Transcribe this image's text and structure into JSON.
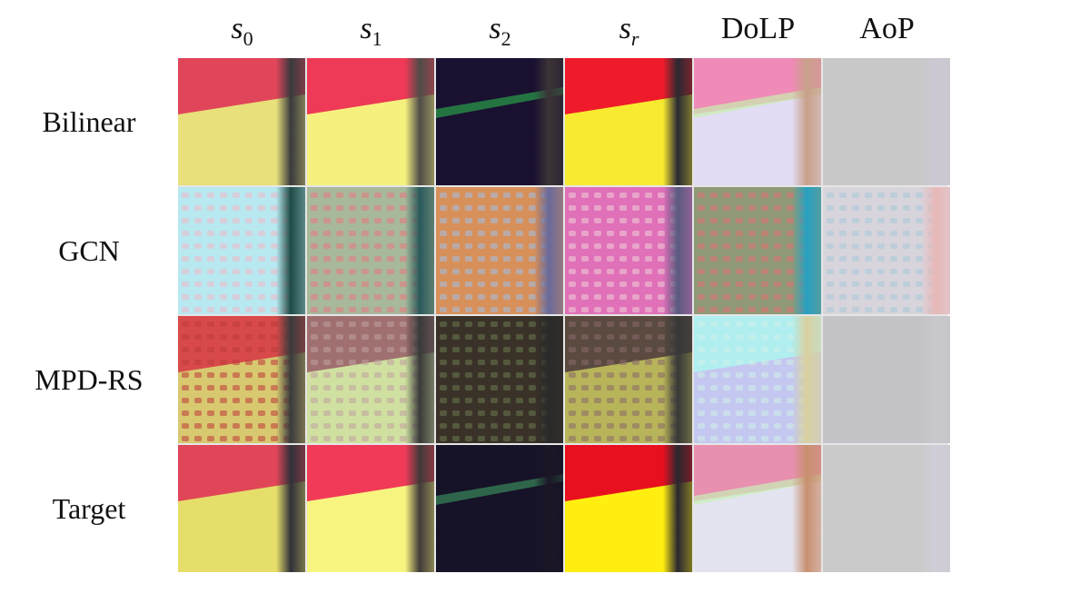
{
  "figure": {
    "columns": [
      {
        "id": "s0",
        "base": "s",
        "sub": "0",
        "math": true
      },
      {
        "id": "s1",
        "base": "s",
        "sub": "1",
        "math": true
      },
      {
        "id": "s2",
        "base": "s",
        "sub": "2",
        "math": true
      },
      {
        "id": "sr",
        "base": "s",
        "sub": "r",
        "math": true
      },
      {
        "id": "dolp",
        "base": "DoLP",
        "sub": "",
        "math": false
      },
      {
        "id": "aop",
        "base": "AoP",
        "sub": "",
        "math": false
      }
    ],
    "rows": [
      {
        "id": "bilinear",
        "label": "Bilinear"
      },
      {
        "id": "gcn",
        "label": "GCN"
      },
      {
        "id": "mpd-rs",
        "label": "MPD-RS"
      },
      {
        "id": "target",
        "label": "Target"
      }
    ],
    "cells": [
      [
        {
          "top": "#e0455a",
          "bottom": "#e8e07a",
          "edge": "#3a3a3e",
          "style": "split"
        },
        {
          "top": "#ee3a56",
          "bottom": "#f6f17e",
          "edge": "#504c48",
          "style": "split"
        },
        {
          "top": "#1a1030",
          "bottom": "#1a1030",
          "edge": "#3a3436",
          "accent": "#2aa04a",
          "style": "dark"
        },
        {
          "top": "#ef1b2a",
          "bottom": "#f8ea30",
          "edge": "#2a2a32",
          "style": "split"
        },
        {
          "top": "#f08ab6",
          "bottom": "#e2dcf4",
          "edge": "#c8a08a",
          "accent": "#c8f0b0",
          "style": "split"
        },
        {
          "top": "#c8c8c8",
          "bottom": "#c6c6cc",
          "edge": "#cdc8d4",
          "style": "flat"
        }
      ],
      [
        {
          "top": "#b8e8f0",
          "bottom": "#b0d8ec",
          "edge": "#1e4a44",
          "pattern": "#f0b8c8",
          "style": "pattern"
        },
        {
          "top": "#a8b89a",
          "bottom": "#b8c8a0",
          "edge": "#2a5a5a",
          "pattern": "#e87880",
          "style": "pattern"
        },
        {
          "top": "#d8905a",
          "bottom": "#d88a6a",
          "edge": "#6a6a9a",
          "pattern": "#a0c0e8",
          "style": "pattern"
        },
        {
          "top": "#e070b8",
          "bottom": "#d070c0",
          "edge": "#5a5a80",
          "pattern": "#f0d0d8",
          "style": "pattern"
        },
        {
          "top": "#909a78",
          "bottom": "#a0a080",
          "edge": "#28a0c0",
          "pattern": "#e07070",
          "style": "pattern"
        },
        {
          "top": "#d8d4dc",
          "bottom": "#d4d0dc",
          "edge": "#e8b8b8",
          "pattern": "#a8c8d8",
          "style": "pattern"
        }
      ],
      [
        {
          "top": "#d84a4a",
          "bottom": "#d8c870",
          "edge": "#3a3a3c",
          "pattern": "#c03a3a",
          "style": "split-pattern"
        },
        {
          "top": "#a07070",
          "bottom": "#d0e0a0",
          "edge": "#3a3a3a",
          "pattern": "#c0a0a0",
          "style": "split-pattern"
        },
        {
          "top": "#3a3228",
          "bottom": "#302a24",
          "edge": "#2a2a2a",
          "pattern": "#6a7a50",
          "style": "dark-pattern"
        },
        {
          "top": "#5a4a40",
          "bottom": "#b8b45a",
          "edge": "#383838",
          "pattern": "#8a6a6a",
          "style": "split-pattern"
        },
        {
          "top": "#b0eef0",
          "bottom": "#c4c8f0",
          "edge": "#d8d0a0",
          "pattern": "#d0f0e8",
          "style": "split-pattern"
        },
        {
          "top": "#c4c4c8",
          "bottom": "#c6c6ca",
          "edge": "#c8c8cc",
          "pattern": "#bcb8c4",
          "style": "flat"
        }
      ],
      [
        {
          "top": "#e04658",
          "bottom": "#e6de6a",
          "edge": "#303038",
          "style": "split"
        },
        {
          "top": "#f03a58",
          "bottom": "#f8f480",
          "edge": "#403a38",
          "style": "split"
        },
        {
          "top": "#161228",
          "bottom": "#161228",
          "edge": "#1a1626",
          "accent": "#3a8a5a",
          "style": "dark"
        },
        {
          "top": "#e8101e",
          "bottom": "#ffee10",
          "edge": "#2a2830",
          "style": "split"
        },
        {
          "top": "#e890b0",
          "bottom": "#e4e4f0",
          "edge": "#c89070",
          "accent": "#c8f0b8",
          "style": "split"
        },
        {
          "top": "#cacaca",
          "bottom": "#c8c8cc",
          "edge": "#d0cdd8",
          "style": "flat"
        }
      ]
    ]
  }
}
